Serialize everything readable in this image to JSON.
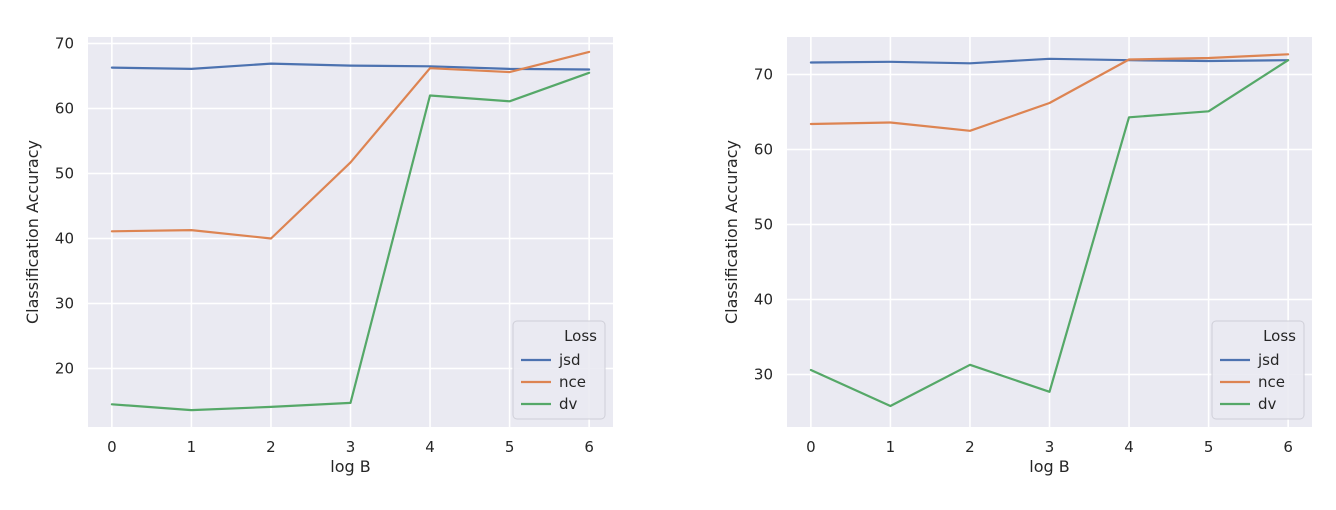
{
  "chart_data": [
    {
      "type": "line",
      "title": "",
      "xlabel": "log B",
      "ylabel": "Classification Accuracy",
      "x": [
        0,
        1,
        2,
        3,
        4,
        5,
        6
      ],
      "xlim": [
        -0.3,
        6.3
      ],
      "ylim": [
        11,
        71
      ],
      "yticks": [
        20,
        30,
        40,
        50,
        60,
        70
      ],
      "grid": true,
      "legend": {
        "title": "Loss",
        "position": "lower-right"
      },
      "series": [
        {
          "name": "jsd",
          "color": "#4c72b0",
          "values": [
            66.3,
            66.1,
            66.9,
            66.6,
            66.5,
            66.1,
            66.0
          ]
        },
        {
          "name": "nce",
          "color": "#dd8452",
          "values": [
            41.1,
            41.3,
            40.0,
            51.7,
            66.2,
            65.6,
            68.7
          ]
        },
        {
          "name": "dv",
          "color": "#55a868",
          "values": [
            14.5,
            13.6,
            14.1,
            14.7,
            62.0,
            61.1,
            65.5
          ]
        }
      ]
    },
    {
      "type": "line",
      "title": "",
      "xlabel": "log B",
      "ylabel": "Classification Accuracy",
      "x": [
        0,
        1,
        2,
        3,
        4,
        5,
        6
      ],
      "xlim": [
        -0.3,
        6.3
      ],
      "ylim": [
        23,
        75
      ],
      "yticks": [
        30,
        40,
        50,
        60,
        70
      ],
      "grid": true,
      "legend": {
        "title": "Loss",
        "position": "lower-right"
      },
      "series": [
        {
          "name": "jsd",
          "color": "#4c72b0",
          "values": [
            71.6,
            71.7,
            71.5,
            72.1,
            71.9,
            71.8,
            71.9
          ]
        },
        {
          "name": "nce",
          "color": "#dd8452",
          "values": [
            63.4,
            63.6,
            62.5,
            66.2,
            72.0,
            72.2,
            72.7
          ]
        },
        {
          "name": "dv",
          "color": "#55a868",
          "values": [
            30.6,
            25.8,
            31.3,
            27.7,
            64.3,
            65.1,
            71.9
          ]
        }
      ]
    }
  ]
}
